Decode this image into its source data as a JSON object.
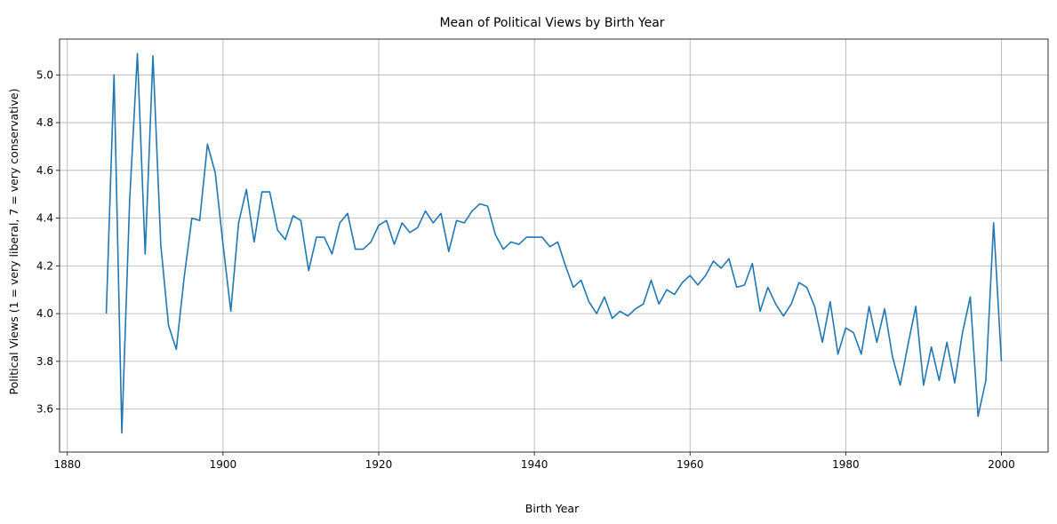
{
  "chart_data": {
    "type": "line",
    "title": "Mean of Political Views by Birth Year",
    "xlabel": "Birth Year",
    "ylabel": "Political Views (1 = very liberal, 7 = very conservative)",
    "xlim": [
      1879,
      2006
    ],
    "ylim": [
      3.42,
      5.15
    ],
    "xticks": [
      1880,
      1900,
      1920,
      1940,
      1960,
      1980,
      2000
    ],
    "xtick_labels": [
      "1880",
      "1900",
      "1920",
      "1940",
      "1960",
      "1980",
      "2000"
    ],
    "yticks": [
      3.6,
      3.8,
      4.0,
      4.2,
      4.4,
      4.6,
      4.8,
      5.0
    ],
    "ytick_labels": [
      "3.6",
      "3.8",
      "4.0",
      "4.2",
      "4.4",
      "4.6",
      "4.8",
      "5.0"
    ],
    "grid": true,
    "line_color": "#1f77b4",
    "series": [
      {
        "x": [
          1885,
          1886,
          1887,
          1888,
          1889,
          1890,
          1891,
          1892,
          1893,
          1894,
          1895,
          1896,
          1897,
          1898,
          1899,
          1900,
          1901,
          1902,
          1903,
          1904,
          1905,
          1906,
          1907,
          1908,
          1909,
          1910,
          1911,
          1912,
          1913,
          1914,
          1915,
          1916,
          1917,
          1918,
          1919,
          1920,
          1921,
          1922,
          1923,
          1924,
          1925,
          1926,
          1927,
          1928,
          1929,
          1930,
          1931,
          1932,
          1933,
          1934,
          1935,
          1936,
          1937,
          1938,
          1939,
          1940,
          1941,
          1942,
          1943,
          1944,
          1945,
          1946,
          1947,
          1948,
          1949,
          1950,
          1951,
          1952,
          1953,
          1954,
          1955,
          1956,
          1957,
          1958,
          1959,
          1960,
          1961,
          1962,
          1963,
          1964,
          1965,
          1966,
          1967,
          1968,
          1969,
          1970,
          1971,
          1972,
          1973,
          1974,
          1975,
          1976,
          1977,
          1978,
          1979,
          1980,
          1981,
          1982,
          1983,
          1984,
          1985,
          1986,
          1987,
          1988,
          1989,
          1990,
          1991,
          1992,
          1993,
          1994,
          1995,
          1996,
          1997,
          1998,
          1999,
          2000
        ],
        "y": [
          4.0,
          5.0,
          3.5,
          4.47,
          5.09,
          4.25,
          5.08,
          4.29,
          3.95,
          3.85,
          4.15,
          4.4,
          4.39,
          4.71,
          4.59,
          4.29,
          4.01,
          4.38,
          4.52,
          4.3,
          4.51,
          4.51,
          4.35,
          4.31,
          4.41,
          4.39,
          4.18,
          4.32,
          4.32,
          4.25,
          4.38,
          4.42,
          4.27,
          4.27,
          4.3,
          4.37,
          4.39,
          4.29,
          4.38,
          4.34,
          4.36,
          4.43,
          4.38,
          4.42,
          4.26,
          4.39,
          4.38,
          4.43,
          4.46,
          4.45,
          4.33,
          4.27,
          4.3,
          4.29,
          4.32,
          4.32,
          4.32,
          4.28,
          4.3,
          4.2,
          4.11,
          4.14,
          4.05,
          4.0,
          4.07,
          3.98,
          4.01,
          3.99,
          4.02,
          4.04,
          4.14,
          4.04,
          4.1,
          4.08,
          4.13,
          4.16,
          4.12,
          4.16,
          4.22,
          4.19,
          4.23,
          4.11,
          4.12,
          4.21,
          4.01,
          4.11,
          4.04,
          3.99,
          4.04,
          4.13,
          4.11,
          4.03,
          3.88,
          4.05,
          3.83,
          3.94,
          3.92,
          3.83,
          4.03,
          3.88,
          4.02,
          3.82,
          3.7,
          3.87,
          4.03,
          3.7,
          3.86,
          3.72,
          3.88,
          3.71,
          3.92,
          4.07,
          3.57,
          3.72,
          4.38,
          3.8
        ]
      }
    ]
  }
}
